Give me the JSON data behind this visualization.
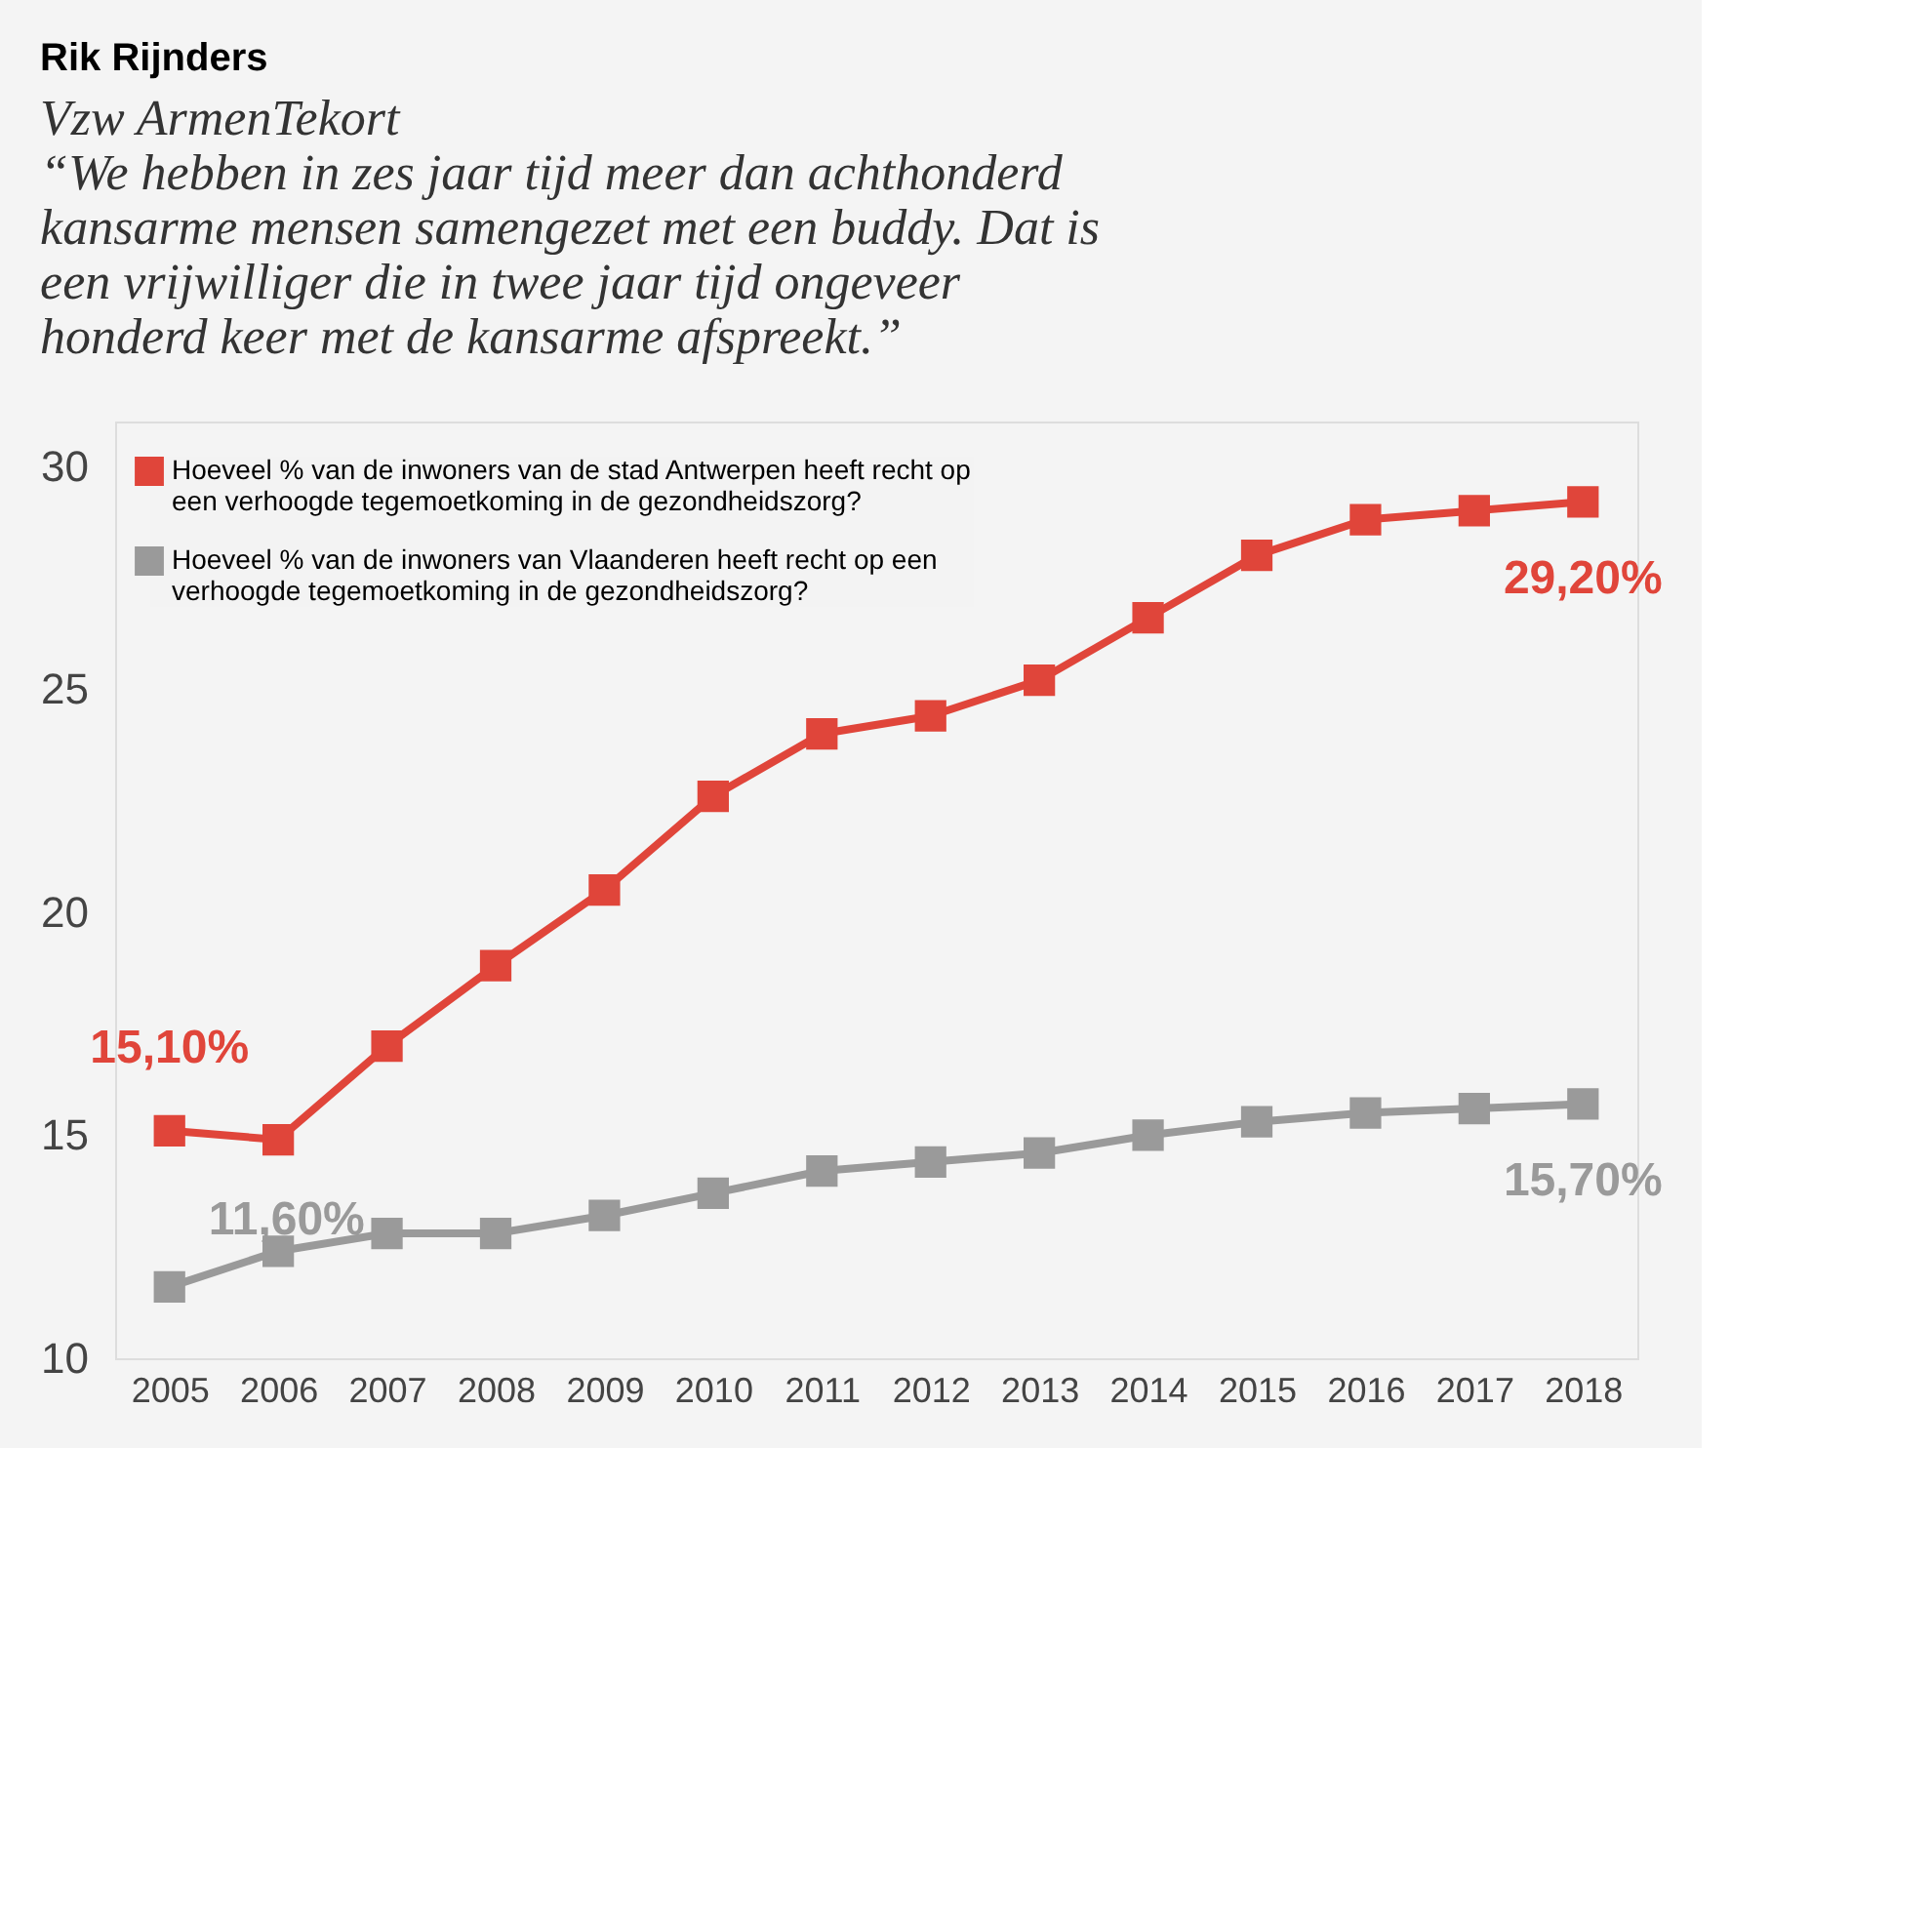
{
  "chart_data": {
    "type": "line",
    "title": "Rik Rijnders",
    "subtitle": "Vzw ArmenTekort",
    "annotations": [
      "“We hebben in zes jaar tijd meer dan achthonderd kansarme mensen samengezet met een buddy. Dat is een vrijwilliger die in twee jaar tijd ongeveer honderd keer met de kansarme afspreekt.”"
    ],
    "categories": [
      "2005",
      "2006",
      "2007",
      "2008",
      "2009",
      "2010",
      "2011",
      "2012",
      "2013",
      "2014",
      "2015",
      "2016",
      "2017",
      "2018"
    ],
    "series": [
      {
        "name": "Hoeveel % van de inwoners van de stad Antwerpen heeft recht op een verhoogde tegemoetkoming in de gezondheidszorg?",
        "color": "#e0453a",
        "values": [
          15.1,
          14.9,
          17.0,
          18.8,
          20.5,
          22.6,
          24.0,
          24.4,
          25.2,
          26.6,
          28.0,
          28.8,
          29.0,
          29.2
        ],
        "value_labels": [
          "15,10%",
          null,
          null,
          null,
          null,
          null,
          null,
          null,
          null,
          null,
          null,
          null,
          null,
          "29,20%"
        ]
      },
      {
        "name": "Hoeveel % van de inwoners van Vlaanderen heeft recht op een verhoogde tegemoetkoming in de gezondheidszorg?",
        "color": "#9a9a9a",
        "values": [
          11.6,
          12.4,
          12.8,
          12.8,
          13.2,
          13.7,
          14.2,
          14.4,
          14.6,
          15.0,
          15.3,
          15.5,
          15.6,
          15.7
        ],
        "value_labels": [
          "11,60%",
          null,
          null,
          null,
          null,
          null,
          null,
          null,
          null,
          null,
          null,
          null,
          null,
          "15,70%"
        ]
      }
    ],
    "ylim": [
      10,
      31
    ],
    "yticks": [
      10,
      15,
      20,
      25,
      30
    ],
    "grid": false,
    "legend": "top left",
    "marker": "square",
    "line_style": "solid"
  }
}
